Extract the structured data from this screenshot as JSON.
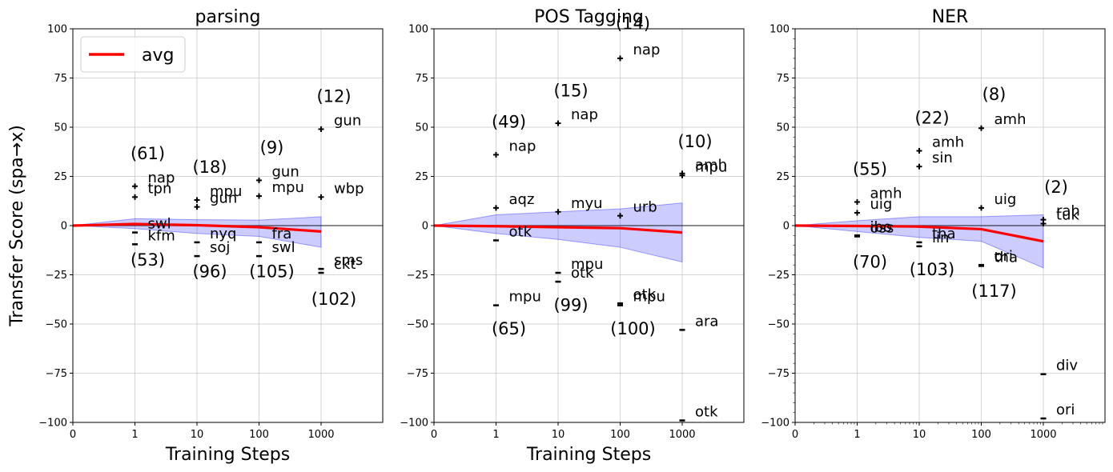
{
  "chart_data": [
    {
      "type": "line",
      "title": "parsing",
      "xlabel": "Training Steps",
      "ylabel": "Transfer Score (spa→x)",
      "x_ticks": [
        "0",
        "1",
        "10",
        "100",
        "1000"
      ],
      "y_ticks": [
        "100",
        "75",
        "50",
        "25",
        "0",
        "−25",
        "−50",
        "−75",
        "−100"
      ],
      "ylim": [
        -100,
        100
      ],
      "grid": true,
      "legend": {
        "label": "avg",
        "placement": "top-left"
      },
      "avg": {
        "x": [
          0,
          1,
          2,
          3,
          4
        ],
        "y": [
          0,
          0.8,
          0.2,
          -0.8,
          -3
        ]
      },
      "band": {
        "x": [
          0,
          1,
          2,
          3,
          4
        ],
        "lower": [
          0,
          -1.5,
          -4,
          -5.5,
          -11
        ],
        "upper": [
          0,
          3.5,
          3,
          2.8,
          4.5
        ]
      },
      "points": [
        {
          "x": 1,
          "y": 20,
          "dir": "pos",
          "label": "nap"
        },
        {
          "x": 1,
          "y": 14.5,
          "dir": "pos",
          "label": "tpn"
        },
        {
          "x": 1,
          "y": -3.5,
          "dir": "neg",
          "label": "swl"
        },
        {
          "x": 1,
          "y": -9.5,
          "dir": "neg",
          "label": "kfm"
        },
        {
          "x": 2,
          "y": 13,
          "dir": "pos",
          "label": "mpu"
        },
        {
          "x": 2,
          "y": 9.5,
          "dir": "pos",
          "label": "gun"
        },
        {
          "x": 2,
          "y": -8.5,
          "dir": "neg",
          "label": "nyq"
        },
        {
          "x": 2,
          "y": -15.5,
          "dir": "neg",
          "label": "soj"
        },
        {
          "x": 3,
          "y": 23,
          "dir": "pos",
          "label": "gun"
        },
        {
          "x": 3,
          "y": 15,
          "dir": "pos",
          "label": "mpu"
        },
        {
          "x": 3,
          "y": -8.5,
          "dir": "neg",
          "label": "fra"
        },
        {
          "x": 3,
          "y": -15.5,
          "dir": "neg",
          "label": "swl"
        },
        {
          "x": 4,
          "y": 49,
          "dir": "pos",
          "label": "gun"
        },
        {
          "x": 4,
          "y": 14.5,
          "dir": "pos",
          "label": "wbp"
        },
        {
          "x": 4,
          "y": -22,
          "dir": "neg",
          "label": "sms"
        },
        {
          "x": 4,
          "y": -24,
          "dir": "neg",
          "label": "ckt"
        }
      ],
      "counts": [
        {
          "x": 1,
          "y": 37,
          "text": "(61)"
        },
        {
          "x": 1,
          "y": -17,
          "text": "(53)"
        },
        {
          "x": 2,
          "y": 30,
          "text": "(18)"
        },
        {
          "x": 2,
          "y": -23,
          "text": "(96)"
        },
        {
          "x": 3,
          "y": 40,
          "text": "(9)"
        },
        {
          "x": 3,
          "y": -23,
          "text": "(105)"
        },
        {
          "x": 4,
          "y": 66,
          "text": "(12)"
        },
        {
          "x": 4,
          "y": -37,
          "text": "(102)"
        }
      ]
    },
    {
      "type": "line",
      "title": "POS Tagging",
      "xlabel": "Training Steps",
      "ylabel": "",
      "x_ticks": [
        "0",
        "1",
        "10",
        "100",
        "1000"
      ],
      "y_ticks": [
        "100",
        "75",
        "50",
        "25",
        "0",
        "−25",
        "−50",
        "−75",
        "−100"
      ],
      "ylim": [
        -100,
        100
      ],
      "grid": true,
      "avg": {
        "x": [
          0,
          1,
          2,
          3,
          4
        ],
        "y": [
          0,
          -0.3,
          -0.8,
          -1.3,
          -3.5
        ]
      },
      "band": {
        "x": [
          0,
          1,
          2,
          3,
          4
        ],
        "lower": [
          0,
          -4,
          -7,
          -11,
          -18.5
        ],
        "upper": [
          0,
          5.5,
          7,
          8.5,
          11.5
        ]
      },
      "points": [
        {
          "x": 1,
          "y": 36,
          "dir": "pos",
          "label": "nap"
        },
        {
          "x": 1,
          "y": 9,
          "dir": "pos",
          "label": "aqz"
        },
        {
          "x": 1,
          "y": -7.5,
          "dir": "neg",
          "label": "otk"
        },
        {
          "x": 1,
          "y": -40.5,
          "dir": "neg",
          "label": "mpu"
        },
        {
          "x": 2,
          "y": 52,
          "dir": "pos",
          "label": "nap"
        },
        {
          "x": 2,
          "y": 7,
          "dir": "pos",
          "label": "myu"
        },
        {
          "x": 2,
          "y": -24,
          "dir": "neg",
          "label": "mpu"
        },
        {
          "x": 2,
          "y": -28.5,
          "dir": "neg",
          "label": "otk"
        },
        {
          "x": 3,
          "y": 85,
          "dir": "pos",
          "label": "nap"
        },
        {
          "x": 3,
          "y": 5,
          "dir": "pos",
          "label": "urb"
        },
        {
          "x": 3,
          "y": -39.5,
          "dir": "neg",
          "label": "otk"
        },
        {
          "x": 3,
          "y": -40.5,
          "dir": "neg",
          "label": "mpu"
        },
        {
          "x": 4,
          "y": 26.5,
          "dir": "pos",
          "label": "amh"
        },
        {
          "x": 4,
          "y": 25.5,
          "dir": "pos",
          "label": "mpu"
        },
        {
          "x": 4,
          "y": -53,
          "dir": "neg",
          "label": "ara"
        },
        {
          "x": 4,
          "y": -99,
          "dir": "neg",
          "label": "otk"
        }
      ],
      "counts": [
        {
          "x": 1,
          "y": 53,
          "text": "(49)"
        },
        {
          "x": 1,
          "y": -52,
          "text": "(65)"
        },
        {
          "x": 2,
          "y": 69,
          "text": "(15)"
        },
        {
          "x": 2,
          "y": -40,
          "text": "(99)"
        },
        {
          "x": 3,
          "y": 103,
          "text": "(14)"
        },
        {
          "x": 3,
          "y": -52,
          "text": "(100)"
        },
        {
          "x": 4,
          "y": 43,
          "text": "(10)"
        }
      ]
    },
    {
      "type": "line",
      "title": "NER",
      "xlabel": "",
      "ylabel": "",
      "x_ticks": [
        "0",
        "1",
        "10",
        "100",
        "1000"
      ],
      "y_ticks": [
        "100",
        "75",
        "50",
        "25",
        "0",
        "−25",
        "−50",
        "−75",
        "−100"
      ],
      "ylim": [
        -100,
        100
      ],
      "grid": true,
      "avg": {
        "x": [
          0,
          1,
          2,
          3,
          4
        ],
        "y": [
          0,
          -0.2,
          -0.5,
          -1.8,
          -8
        ]
      },
      "band": {
        "x": [
          0,
          1,
          2,
          3,
          4
        ],
        "lower": [
          0,
          -3,
          -6,
          -8,
          -21.5
        ],
        "upper": [
          0,
          2.5,
          4.5,
          4.5,
          5.5
        ]
      },
      "points": [
        {
          "x": 1,
          "y": 12,
          "dir": "pos",
          "label": "amh"
        },
        {
          "x": 1,
          "y": 6.5,
          "dir": "pos",
          "label": "uig"
        },
        {
          "x": 1,
          "y": -5,
          "dir": "neg",
          "label": "ibo"
        },
        {
          "x": 1,
          "y": -5.5,
          "dir": "neg",
          "label": "oss"
        },
        {
          "x": 2,
          "y": 38,
          "dir": "pos",
          "label": "amh"
        },
        {
          "x": 2,
          "y": 30,
          "dir": "pos",
          "label": "sin"
        },
        {
          "x": 2,
          "y": -8.5,
          "dir": "neg",
          "label": "tha"
        },
        {
          "x": 2,
          "y": -10.5,
          "dir": "neg",
          "label": "lin"
        },
        {
          "x": 3,
          "y": 49.5,
          "dir": "pos",
          "label": "amh"
        },
        {
          "x": 3,
          "y": 9,
          "dir": "pos",
          "label": "uig"
        },
        {
          "x": 3,
          "y": -20,
          "dir": "neg",
          "label": "ori"
        },
        {
          "x": 3,
          "y": -20.5,
          "dir": "neg",
          "label": "tha"
        },
        {
          "x": 4,
          "y": 3,
          "dir": "pos",
          "label": "rah"
        },
        {
          "x": 4,
          "y": 1,
          "dir": "pos",
          "label": "tuk"
        },
        {
          "x": 4,
          "y": -75.5,
          "dir": "neg",
          "label": "div"
        },
        {
          "x": 4,
          "y": -98,
          "dir": "neg",
          "label": "ori"
        }
      ],
      "counts": [
        {
          "x": 1,
          "y": 29,
          "text": "(55)"
        },
        {
          "x": 1,
          "y": -18,
          "text": "(70)"
        },
        {
          "x": 2,
          "y": 55,
          "text": "(22)"
        },
        {
          "x": 2,
          "y": -22,
          "text": "(103)"
        },
        {
          "x": 3,
          "y": 67,
          "text": "(8)"
        },
        {
          "x": 3,
          "y": -33,
          "text": "(117)"
        },
        {
          "x": 4,
          "y": 20,
          "text": "(2)"
        }
      ]
    }
  ],
  "colors": {
    "avg": "#ff0000",
    "band": "#0000ff",
    "zero": "#000000",
    "grid": "#b0b0b0"
  }
}
